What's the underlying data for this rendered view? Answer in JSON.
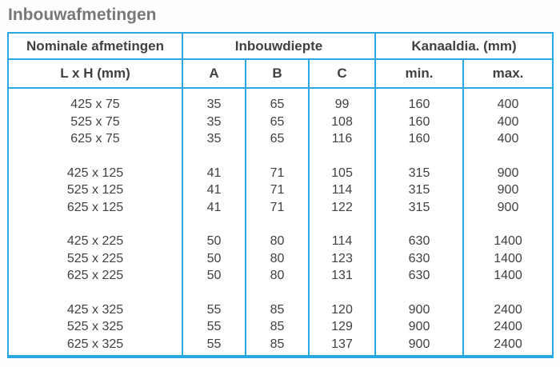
{
  "title": "Inbouwafmetingen",
  "table": {
    "header_groups": [
      {
        "label": "Nominale afmetingen"
      },
      {
        "label": "Inbouwdiepte"
      },
      {
        "label": "Kanaaldia. (mm)"
      }
    ],
    "sub_headers": [
      "L x H (mm)",
      "A",
      "B",
      "C",
      "min.",
      "max."
    ],
    "row_groups": [
      [
        [
          "425 x 75",
          "35",
          "65",
          "99",
          "160",
          "400"
        ],
        [
          "525 x 75",
          "35",
          "65",
          "108",
          "160",
          "400"
        ],
        [
          "625 x 75",
          "35",
          "65",
          "116",
          "160",
          "400"
        ]
      ],
      [
        [
          "425 x 125",
          "41",
          "71",
          "105",
          "315",
          "900"
        ],
        [
          "525 x 125",
          "41",
          "71",
          "114",
          "315",
          "900"
        ],
        [
          "625 x 125",
          "41",
          "71",
          "122",
          "315",
          "900"
        ]
      ],
      [
        [
          "425 x 225",
          "50",
          "80",
          "114",
          "630",
          "1400"
        ],
        [
          "525 x 225",
          "50",
          "80",
          "123",
          "630",
          "1400"
        ],
        [
          "625 x 225",
          "50",
          "80",
          "131",
          "630",
          "1400"
        ]
      ],
      [
        [
          "425 x 325",
          "55",
          "85",
          "120",
          "900",
          "2400"
        ],
        [
          "525 x 325",
          "55",
          "85",
          "129",
          "900",
          "2400"
        ],
        [
          "625 x 325",
          "55",
          "85",
          "137",
          "900",
          "2400"
        ]
      ]
    ]
  },
  "colors": {
    "border": "#29a9e2",
    "text": "#414042",
    "title": "#77787b"
  }
}
